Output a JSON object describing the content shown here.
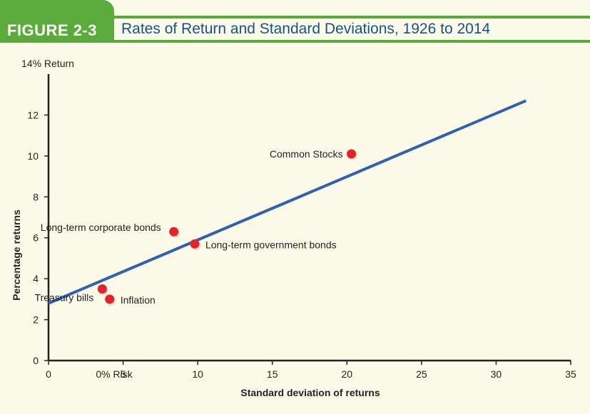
{
  "figure": {
    "number": "FIGURE 2-3",
    "title": "Rates of Return and Standard Deviations, 1926 to 2014"
  },
  "colors": {
    "header_green": "#5aab3c",
    "title_blue": "#17528c",
    "line_blue": "#2f62ae",
    "point_red": "#e3232b",
    "background": "#fcfbe9"
  },
  "chart_data": {
    "type": "scatter",
    "title": "Rates of Return and Standard Deviations, 1926 to 2014",
    "xlabel": "Standard deviation of returns",
    "ylabel": "Percentage returns",
    "top_label": "14% Return",
    "x_origin_label": "0% Risk",
    "xlim": [
      0,
      35
    ],
    "ylim": [
      0,
      14
    ],
    "x_ticks": [
      0,
      5,
      10,
      15,
      20,
      25,
      30,
      35
    ],
    "y_ticks": [
      0,
      2,
      4,
      6,
      8,
      10,
      12
    ],
    "grid": false,
    "points": [
      {
        "label": "Common Stocks",
        "x": 20.3,
        "y": 10.1
      },
      {
        "label": "Long-term corporate bonds",
        "x": 8.4,
        "y": 6.3
      },
      {
        "label": "Long-term government bonds",
        "x": 9.8,
        "y": 5.7
      },
      {
        "label": "Treasury bills",
        "x": 3.6,
        "y": 3.5
      },
      {
        "label": "Inflation",
        "x": 4.1,
        "y": 3.0
      }
    ],
    "line": {
      "x": [
        0,
        32
      ],
      "y": [
        2.8,
        12.7
      ]
    }
  }
}
